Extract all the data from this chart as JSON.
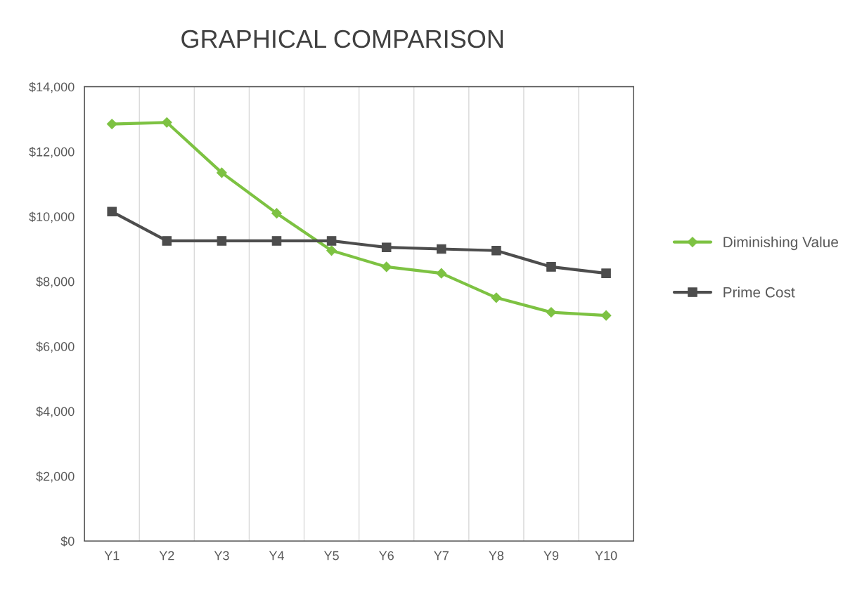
{
  "chart_data": {
    "type": "line",
    "title": "GRAPHICAL COMPARISON",
    "categories": [
      "Y1",
      "Y2",
      "Y3",
      "Y4",
      "Y5",
      "Y6",
      "Y7",
      "Y8",
      "Y9",
      "Y10"
    ],
    "series": [
      {
        "name": "Diminishing Value",
        "color": "#7dc242",
        "marker": "diamond",
        "values": [
          12850,
          12900,
          11350,
          10100,
          8950,
          8450,
          8250,
          7500,
          7050,
          6950
        ]
      },
      {
        "name": "Prime Cost",
        "color": "#4d4d4d",
        "marker": "square",
        "values": [
          10150,
          9250,
          9250,
          9250,
          9250,
          9050,
          9000,
          8950,
          8450,
          8250
        ]
      }
    ],
    "ylim": [
      0,
      14000
    ],
    "yticks": [
      {
        "value": 0,
        "label": "$0"
      },
      {
        "value": 2000,
        "label": "$2,000"
      },
      {
        "value": 4000,
        "label": "$4,000"
      },
      {
        "value": 6000,
        "label": "$6,000"
      },
      {
        "value": 8000,
        "label": "$8,000"
      },
      {
        "value": 10000,
        "label": "$10,000"
      },
      {
        "value": 12000,
        "label": "$12,000"
      },
      {
        "value": 14000,
        "label": "$14,000"
      }
    ],
    "grid": "x",
    "legend": "right",
    "line_style": "solid"
  }
}
